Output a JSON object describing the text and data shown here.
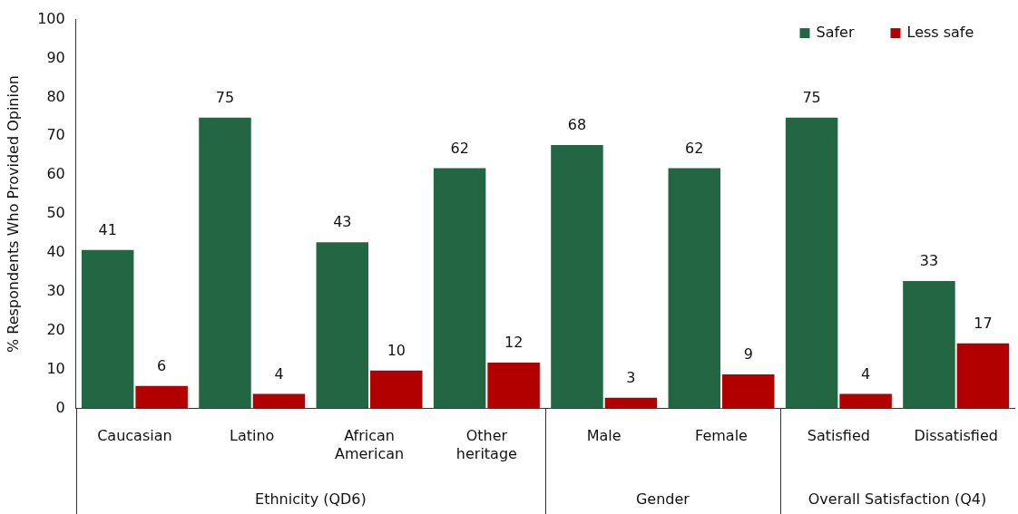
{
  "chart_data": {
    "type": "bar",
    "ylabel": "% Respondents Who Provided Opinion",
    "categories": [
      "Caucasian",
      "Latino",
      "African American",
      "Other heritage",
      "Male",
      "Female",
      "Satisfied",
      "Dissatisfied"
    ],
    "series": [
      {
        "name": "Safer",
        "color": "#236644",
        "values": [
          41,
          75,
          43,
          62,
          68,
          62,
          75,
          33
        ]
      },
      {
        "name": "Less safe",
        "color": "#b20000",
        "values": [
          6,
          4,
          10,
          12,
          3,
          9,
          4,
          17
        ]
      }
    ],
    "ylim": [
      0,
      100
    ],
    "yticks": [
      0,
      10,
      20,
      30,
      40,
      50,
      60,
      70,
      80,
      90,
      100
    ],
    "data_labels": true,
    "legend": "top right",
    "annotations": [
      "Ethnicity (QD6)",
      "Gender",
      "Overall Satisfaction (Q4)"
    ]
  }
}
